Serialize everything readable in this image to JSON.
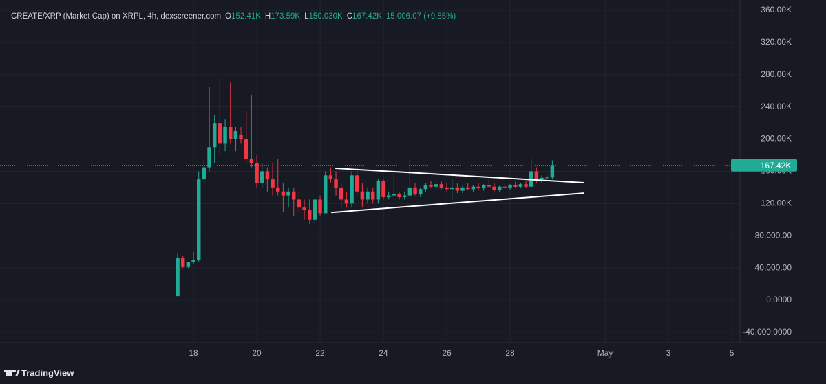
{
  "chart_data": {
    "type": "candlestick",
    "header": {
      "symbol": "CREATE/XRP (Market Cap) on XRPL, 4h, dexscreener.com",
      "o_label": "O",
      "o": "152.41K",
      "h_label": "H",
      "h": "173.59K",
      "l_label": "L",
      "l": "150.030K",
      "c_label": "C",
      "c": "167.42K",
      "change": "15,006.07 (+9.85%)"
    },
    "x": [
      17.5,
      17.667,
      17.833,
      18,
      18.167,
      18.333,
      18.5,
      18.667,
      18.833,
      19,
      19.167,
      19.333,
      19.5,
      19.667,
      19.833,
      20,
      20.167,
      20.333,
      20.5,
      20.667,
      20.833,
      21,
      21.167,
      21.333,
      21.5,
      21.667,
      21.833,
      22,
      22.167,
      22.333,
      22.5,
      22.667,
      22.833,
      23,
      23.167,
      23.333,
      23.5,
      23.667,
      23.833,
      24,
      24.167,
      24.333,
      24.5,
      24.667,
      24.833,
      25,
      25.167,
      25.333,
      25.5,
      25.667,
      25.833,
      26,
      26.167,
      26.333,
      26.5,
      26.667,
      26.833,
      27,
      27.167,
      27.333,
      27.5,
      27.667,
      27.833,
      28,
      28.167,
      28.333,
      28.5,
      28.667,
      28.833,
      29,
      29.167,
      29.333
    ],
    "open": [
      5000,
      52000,
      42000,
      47000,
      50000,
      150000,
      165000,
      190000,
      220000,
      195000,
      215000,
      200000,
      205000,
      200000,
      175000,
      170000,
      145000,
      160000,
      150000,
      140000,
      135000,
      130000,
      135000,
      125000,
      115000,
      112000,
      100000,
      125000,
      108000,
      155000,
      150000,
      140000,
      125000,
      120000,
      155000,
      135000,
      125000,
      135000,
      125000,
      148000,
      128000,
      130000,
      132000,
      128000,
      130000,
      140000,
      132000,
      138000,
      143000,
      141000,
      144000,
      140000,
      138000,
      140000,
      136000,
      140000,
      138000,
      141000,
      139000,
      143000,
      141000,
      137000,
      141000,
      140000,
      143000,
      141000,
      144000,
      141000,
      160000,
      150000,
      152000,
      152410
    ],
    "high": [
      58000,
      55000,
      47000,
      60000,
      160000,
      175000,
      265000,
      230000,
      275000,
      225000,
      270000,
      215000,
      215000,
      235000,
      255000,
      180000,
      170000,
      165000,
      170000,
      175000,
      145000,
      140000,
      140000,
      135000,
      125000,
      125000,
      125000,
      130000,
      160000,
      165000,
      160000,
      145000,
      135000,
      160000,
      165000,
      145000,
      140000,
      140000,
      150000,
      150000,
      135000,
      160000,
      135000,
      135000,
      175000,
      145000,
      140000,
      145000,
      148000,
      146000,
      147000,
      145000,
      150000,
      145000,
      142000,
      145000,
      143000,
      146000,
      144000,
      150000,
      145000,
      142000,
      146000,
      144000,
      147000,
      146000,
      148000,
      175000,
      165000,
      155000,
      156000,
      173590
    ],
    "low": [
      5000,
      40000,
      40000,
      45000,
      48000,
      145000,
      160000,
      170000,
      180000,
      185000,
      195000,
      185000,
      195000,
      170000,
      165000,
      140000,
      140000,
      135000,
      130000,
      130000,
      110000,
      115000,
      105000,
      110000,
      100000,
      95000,
      95000,
      105000,
      108000,
      145000,
      130000,
      115000,
      115000,
      115000,
      130000,
      115000,
      120000,
      120000,
      120000,
      125000,
      125000,
      128000,
      125000,
      125000,
      128000,
      130000,
      128000,
      135000,
      140000,
      138000,
      138000,
      135000,
      125000,
      133000,
      133000,
      137000,
      135000,
      137000,
      136000,
      140000,
      135000,
      134000,
      139000,
      137000,
      140000,
      139000,
      140000,
      139000,
      145000,
      146000,
      150000,
      150030
    ],
    "close": [
      52000,
      42000,
      47000,
      50000,
      150000,
      165000,
      190000,
      220000,
      195000,
      215000,
      200000,
      210000,
      200000,
      175000,
      170000,
      145000,
      160000,
      150000,
      140000,
      135000,
      130000,
      135000,
      125000,
      115000,
      112000,
      100000,
      125000,
      108000,
      155000,
      150000,
      140000,
      125000,
      120000,
      155000,
      135000,
      125000,
      135000,
      125000,
      148000,
      128000,
      130000,
      132000,
      128000,
      130000,
      140000,
      132000,
      138000,
      143000,
      141000,
      144000,
      140000,
      138000,
      140000,
      136000,
      140000,
      138000,
      141000,
      139000,
      143000,
      141000,
      137000,
      141000,
      140000,
      143000,
      141000,
      144000,
      141000,
      160000,
      150000,
      152000,
      152410,
      167420
    ],
    "up_color": "#22ab94",
    "down_color": "#f23645",
    "xlim": [
      11.89,
      35.26
    ],
    "xticks": [
      18,
      20,
      22,
      24,
      26,
      28,
      {
        "value": 31,
        "label": "May"
      },
      {
        "value": 33,
        "label": "3"
      },
      {
        "value": 35,
        "label": "5"
      }
    ],
    "ylim": [
      -52900,
      372800
    ],
    "yticks": [
      {
        "value": -40000,
        "label": "-40,000.0000"
      },
      {
        "value": 0,
        "label": "0.0000"
      },
      {
        "value": 40000,
        "label": "40,000.00"
      },
      {
        "value": 80000,
        "label": "80,000.00"
      },
      {
        "value": 120000,
        "label": "120.00K"
      },
      {
        "value": 160000,
        "label": "160.00K"
      },
      {
        "value": 200000,
        "label": "200.00K"
      },
      {
        "value": 240000,
        "label": "240.00K"
      },
      {
        "value": 280000,
        "label": "280.00K"
      },
      {
        "value": 320000,
        "label": "320.00K"
      },
      {
        "value": 360000,
        "label": "360.00K"
      }
    ],
    "grid": true,
    "last_price": {
      "value": 167420,
      "label": "167.42K"
    },
    "trendlines": [
      {
        "x": [
          22.48,
          30.33
        ],
        "y": [
          163800,
          145900
        ]
      },
      {
        "x": [
          22.35,
          30.33
        ],
        "y": [
          109000,
          133000
        ]
      }
    ],
    "brand": "TradingView"
  }
}
